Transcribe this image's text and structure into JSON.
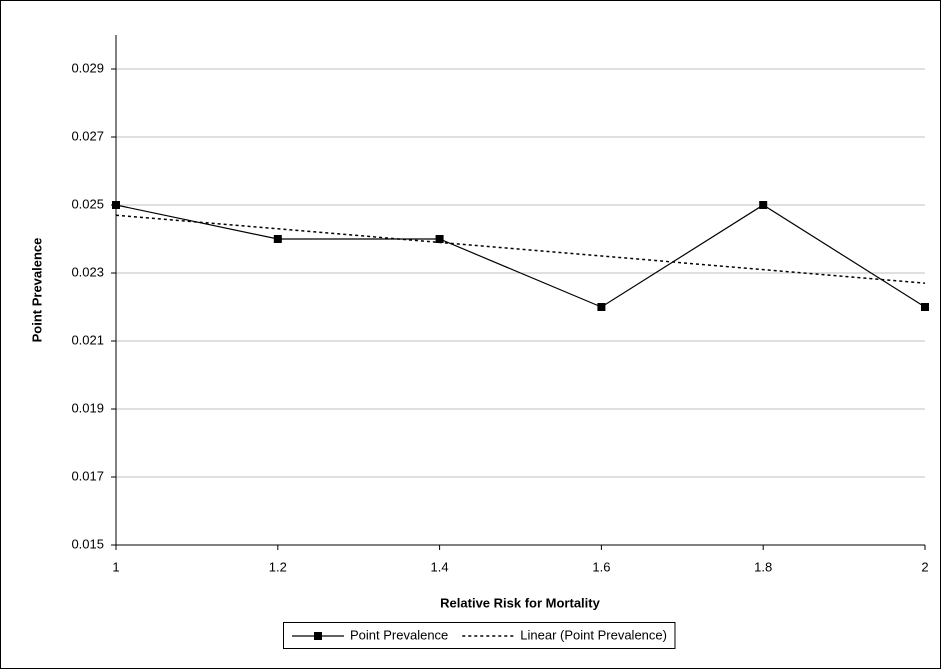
{
  "chart_data": {
    "type": "line",
    "x_label": "Relative Risk for Mortality",
    "y_label": "Point Prevalence",
    "x": [
      1,
      1.2,
      1.4,
      1.6,
      1.8,
      2
    ],
    "series": [
      {
        "name": "Point Prevalence",
        "color": "#000000",
        "style": "solid",
        "marker": "square",
        "values": [
          0.025,
          0.024,
          0.024,
          0.022,
          0.025,
          0.022
        ]
      },
      {
        "name": "Linear (Point Prevalence)",
        "color": "#000000",
        "style": "dotted",
        "x": [
          1,
          2
        ],
        "values": [
          0.0247,
          0.0227
        ]
      }
    ],
    "xlim": [
      1,
      2
    ],
    "xticks": [
      1,
      1.2,
      1.4,
      1.6,
      1.8,
      2
    ],
    "ylim": [
      0.015,
      0.03
    ],
    "yticks": [
      0.015,
      0.017,
      0.019,
      0.021,
      0.023,
      0.025,
      0.027,
      0.029
    ],
    "grid": true,
    "legend": "bottom"
  }
}
